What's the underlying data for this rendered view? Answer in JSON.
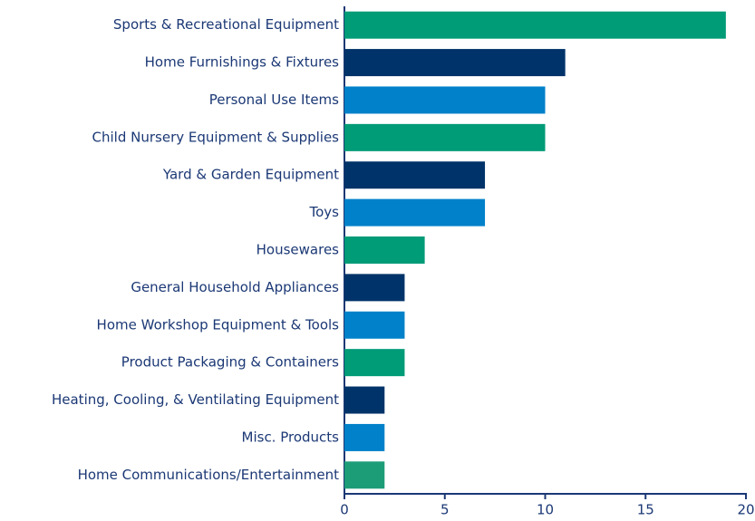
{
  "chart_data": {
    "type": "barh",
    "categories": [
      "Sports & Recreational Equipment",
      "Home Furnishings & Fixtures",
      "Personal Use Items",
      "Child Nursery Equipment & Supplies",
      "Yard & Garden Equipment",
      "Toys",
      "Housewares",
      "General Household Appliances",
      "Home Workshop Equipment & Tools",
      "Product Packaging & Containers",
      "Heating, Cooling, & Ventilating Equipment",
      "Misc. Products",
      "Home Communications/Entertainment"
    ],
    "values": [
      19,
      11,
      10,
      10,
      7,
      7,
      4,
      3,
      3,
      3,
      2,
      2,
      2
    ],
    "colors": [
      "#009b77",
      "#003369",
      "#0081c9",
      "#009b77",
      "#003369",
      "#0081c9",
      "#009b77",
      "#003369",
      "#0081c9",
      "#009b77",
      "#003369",
      "#0081c9",
      "#1d9c78"
    ],
    "xlim": [
      0,
      20
    ],
    "xticks": [
      0,
      5,
      10,
      15,
      20
    ]
  }
}
